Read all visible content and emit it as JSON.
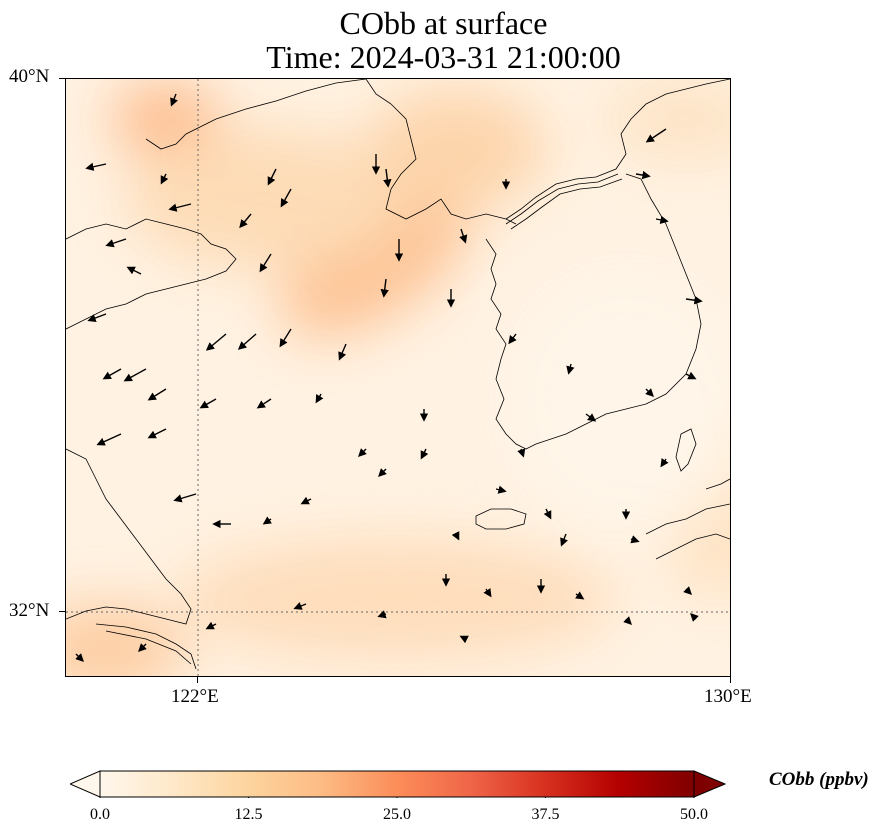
{
  "title": {
    "line1": "CObb at surface",
    "line2": "Time: 2024-03-31 21:00:00"
  },
  "axes": {
    "lat_ticks": [
      {
        "label": "40°N",
        "value": 40
      },
      {
        "label": "32°N",
        "value": 32
      }
    ],
    "lon_ticks": [
      {
        "label": "122°E",
        "value": 122
      },
      {
        "label": "130°E",
        "value": 130
      }
    ],
    "lon_range": [
      120,
      130
    ],
    "lat_range": [
      31,
      40
    ]
  },
  "colorbar": {
    "title": "CObb (ppbv)",
    "ticks": [
      "0.0",
      "12.5",
      "25.0",
      "37.5",
      "50.0"
    ],
    "range": [
      0,
      50
    ],
    "extend": "both",
    "colormap": "OrRd",
    "stops": [
      "#fff7ec",
      "#fee8c8",
      "#fdd49e",
      "#fdbb84",
      "#fc8d59",
      "#ef6548",
      "#d7301f",
      "#b30000",
      "#7f0000"
    ]
  },
  "field": {
    "background_color": "#fff2e2",
    "hotspots": [
      {
        "lon": 121.5,
        "lat": 39.6,
        "value": 14
      },
      {
        "lon": 124.8,
        "lat": 37.9,
        "value": 13
      },
      {
        "lon": 123.2,
        "lat": 38.6,
        "value": 8
      },
      {
        "lon": 126.5,
        "lat": 38.9,
        "value": 7
      },
      {
        "lon": 124.5,
        "lat": 32.6,
        "value": 5
      },
      {
        "lon": 120.6,
        "lat": 31.5,
        "value": 6
      },
      {
        "lon": 128.5,
        "lat": 39.6,
        "value": 5
      },
      {
        "lon": 129.2,
        "lat": 33.9,
        "value": 5
      }
    ]
  }
}
